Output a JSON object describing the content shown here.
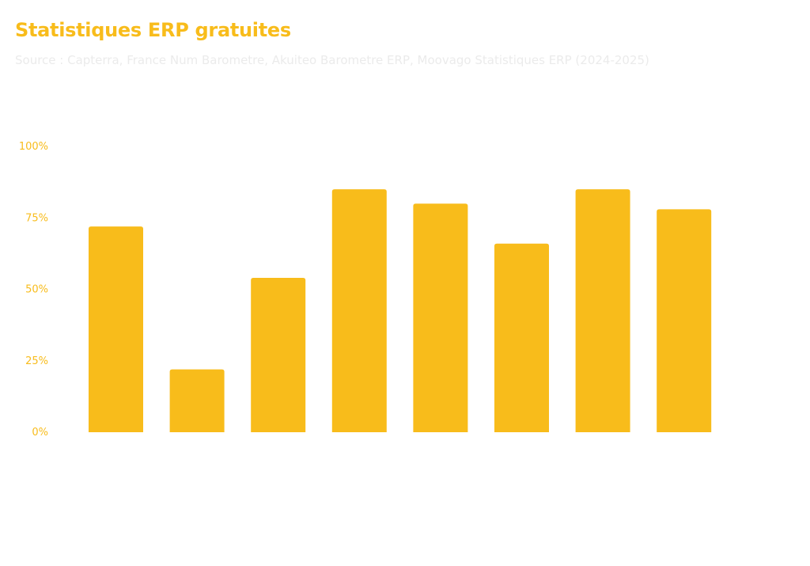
{
  "chart_data": {
    "type": "bar",
    "title": "Statistiques ERP gratuites",
    "subtitle": "Source : Capterra, France Num Barometre, Akuiteo Barometre ERP, Moovago Statistiques ERP (2024-2025)",
    "categories": [
      "",
      "",
      "",
      "",
      "",
      "",
      "",
      ""
    ],
    "values": [
      72,
      22,
      54,
      85,
      80,
      66,
      85,
      78
    ],
    "xlabel": "",
    "ylabel": "",
    "ylim": [
      0,
      100
    ],
    "y_ticks": [
      0,
      25,
      50,
      75,
      100
    ],
    "y_tick_labels": [
      "0%",
      "25%",
      "50%",
      "75%",
      "100%"
    ],
    "grid": false,
    "legend": "none"
  },
  "colors": {
    "bar": "#F8BC1B",
    "title": "#F8BC1B",
    "subtitle": "#EBEBEB",
    "tick_label": "#F8BC1B"
  }
}
